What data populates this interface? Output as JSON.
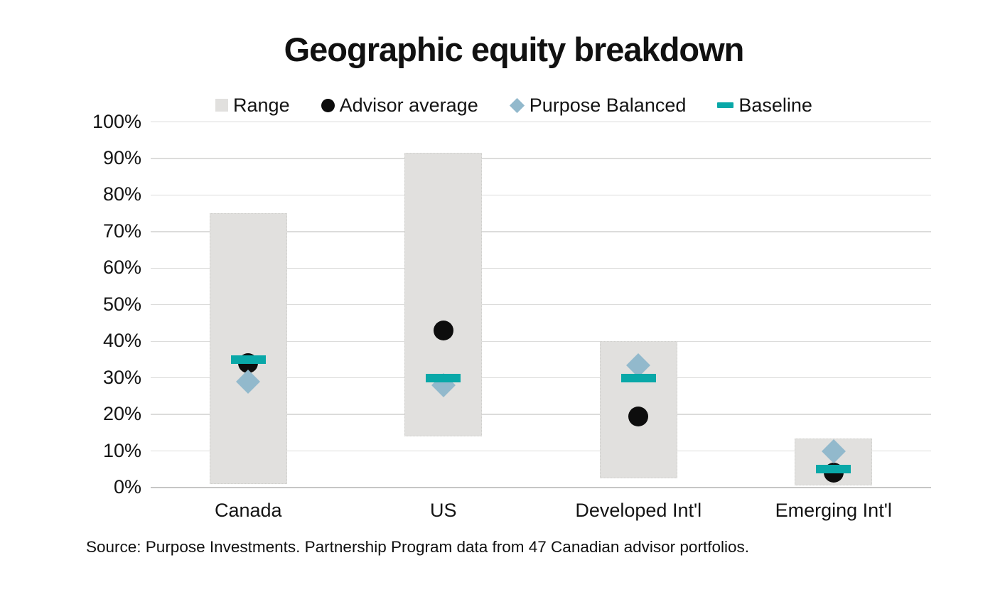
{
  "title": "Geographic equity breakdown",
  "source": "Source: Purpose Investments. Partnership Program data from 47 Canadian advisor portfolios.",
  "chart_data": {
    "type": "bar",
    "subtype": "floating-range-bars-with-point-markers",
    "title": "Geographic equity breakdown",
    "categories": [
      "Canada",
      "US",
      "Developed Int'l",
      "Emerging Int'l"
    ],
    "y_axis": {
      "min": 0,
      "max": 100,
      "step": 10,
      "tick_suffix": "%"
    },
    "grid": true,
    "legend_position": "top",
    "series": [
      {
        "name": "Range",
        "type": "range-bar",
        "marker": "square",
        "color": "#e1e0de",
        "low": [
          1,
          14,
          2.5,
          0.5
        ],
        "high": [
          75,
          91.5,
          40,
          13.5
        ]
      },
      {
        "name": "Advisor average",
        "type": "point",
        "marker": "circle",
        "color": "#0d0d0d",
        "values": [
          34,
          43,
          19.5,
          4
        ]
      },
      {
        "name": "Purpose Balanced",
        "type": "point",
        "marker": "diamond",
        "color": "#92b9cc",
        "values": [
          29,
          28,
          33.5,
          10
        ]
      },
      {
        "name": "Baseline",
        "type": "point",
        "marker": "dash",
        "color": "#09a8a8",
        "values": [
          35,
          30,
          30,
          5
        ]
      }
    ]
  }
}
